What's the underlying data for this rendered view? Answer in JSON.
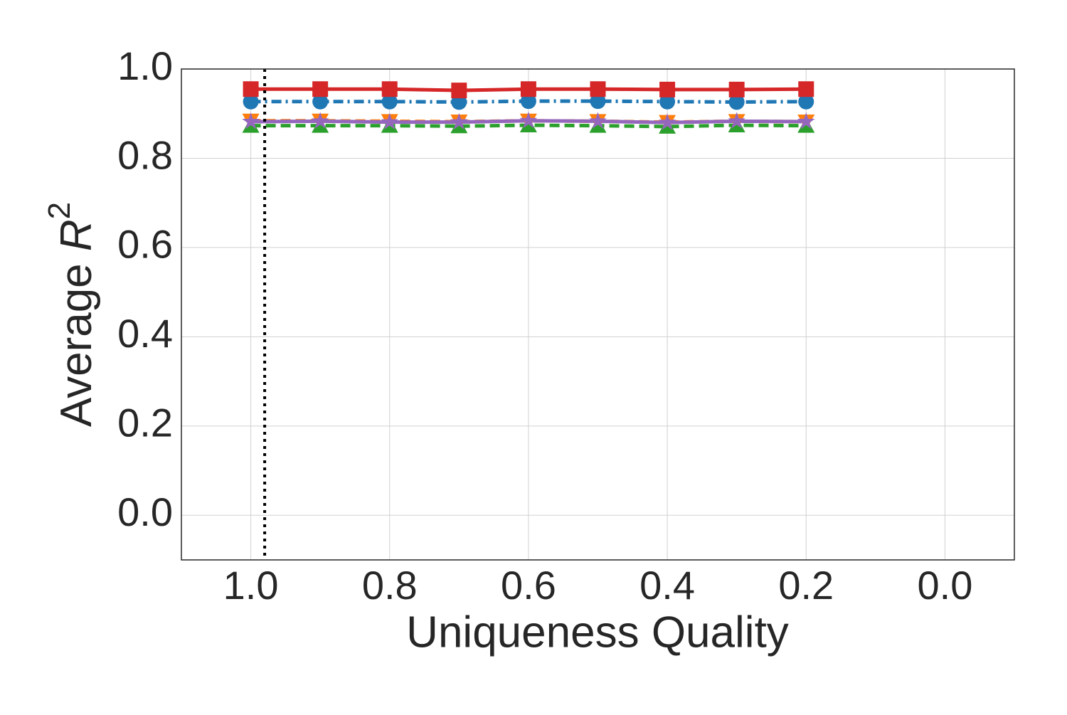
{
  "chart_data": {
    "type": "line",
    "xlabel": "Uniqueness Quality",
    "ylabel": [
      "Average ",
      "R",
      "2"
    ],
    "x": [
      1.0,
      0.9,
      0.8,
      0.7,
      0.6,
      0.5,
      0.4,
      0.3,
      0.2
    ],
    "series": [
      {
        "color": "#1f77b4",
        "marker": "circle",
        "linestyle": "dashdot",
        "values": [
          0.927,
          0.927,
          0.927,
          0.926,
          0.928,
          0.928,
          0.927,
          0.926,
          0.927
        ]
      },
      {
        "color": "#ff7f0e",
        "marker": "triangle-down",
        "linestyle": "dashed",
        "values": [
          0.884,
          0.884,
          0.883,
          0.882,
          0.884,
          0.883,
          0.881,
          0.883,
          0.882
        ]
      },
      {
        "color": "#2ca02c",
        "marker": "triangle-up",
        "linestyle": "dashed",
        "values": [
          0.873,
          0.873,
          0.873,
          0.872,
          0.874,
          0.873,
          0.871,
          0.874,
          0.873
        ]
      },
      {
        "color": "#9467bd",
        "marker": "star",
        "linestyle": "solid",
        "values": [
          0.882,
          0.883,
          0.881,
          0.881,
          0.884,
          0.883,
          0.88,
          0.883,
          0.882
        ]
      },
      {
        "color": "#d62728",
        "marker": "square",
        "linestyle": "solid",
        "values": [
          0.955,
          0.955,
          0.955,
          0.952,
          0.955,
          0.955,
          0.954,
          0.954,
          0.955
        ]
      }
    ],
    "vline_x": 0.98,
    "xlim": [
      1.1,
      -0.1
    ],
    "xticks": [
      {
        "value": 1,
        "label": "1.0"
      },
      0.8,
      0.6,
      0.4,
      0.2,
      {
        "value": 0,
        "label": "0.0"
      }
    ],
    "ylim": [
      -0.1,
      1
    ],
    "yticks": [
      {
        "value": 0,
        "label": "0.0"
      },
      0.2,
      0.4,
      0.6,
      0.8,
      {
        "value": 1,
        "label": "1.0"
      }
    ],
    "grid": true
  }
}
